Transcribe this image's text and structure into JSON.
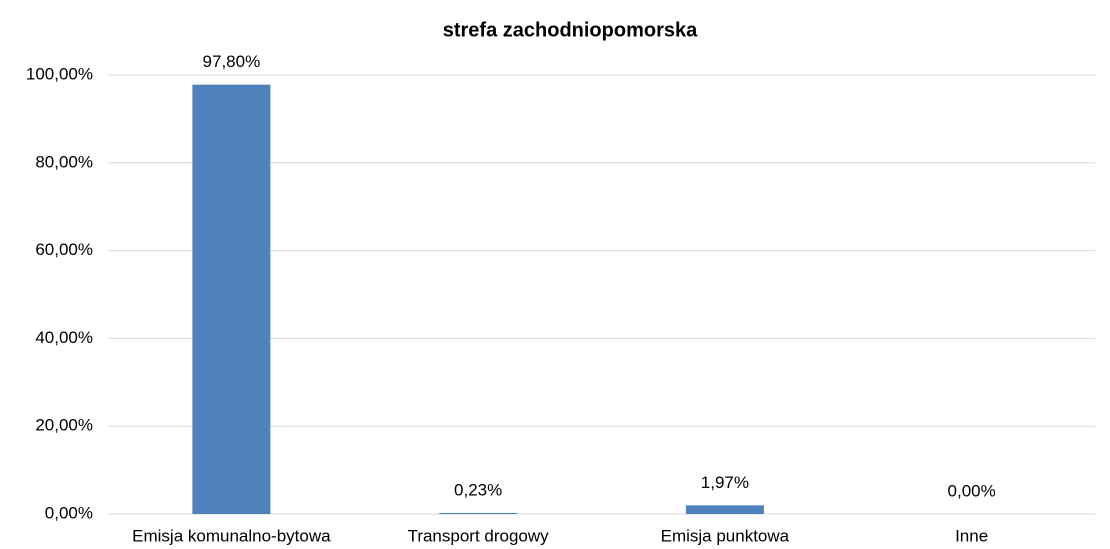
{
  "chart_data": {
    "type": "bar",
    "title": "strefa zachodniopomorska",
    "categories": [
      "Emisja komunalno-bytowa",
      "Transport drogowy",
      "Emisja punktowa",
      "Inne"
    ],
    "values": [
      97.8,
      0.23,
      1.97,
      0
    ],
    "value_labels": [
      "97,80%",
      "0,23%",
      "1,97%",
      "0,00%"
    ],
    "color": "#4f81bd",
    "ylim": [
      0,
      100
    ],
    "yticks": [
      {
        "value": 0,
        "label": "0,00%"
      },
      {
        "value": 20,
        "label": "20,00%"
      },
      {
        "value": 40,
        "label": "40,00%"
      },
      {
        "value": 60,
        "label": "60,00%"
      },
      {
        "value": 80,
        "label": "80,00%"
      },
      {
        "value": 100,
        "label": "100,00%"
      }
    ],
    "grid": true
  }
}
